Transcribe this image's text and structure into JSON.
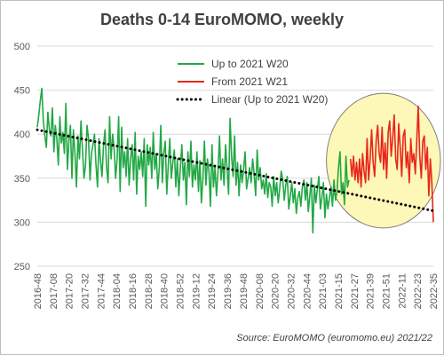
{
  "chart_data": {
    "type": "line",
    "title": "Deaths 0-14 EuroMOMO, weekly",
    "source": "Source: EuroMOMO (euromomo.eu) 2021/22",
    "xlabel": "",
    "ylabel": "",
    "ylim": [
      250,
      500
    ],
    "yticks": [
      250,
      300,
      350,
      400,
      450,
      500
    ],
    "x_tick_labels": [
      "2016-48",
      "2017-08",
      "2017-20",
      "2017-32",
      "2017-44",
      "2018-04",
      "2018-16",
      "2018-28",
      "2018-40",
      "2018-52",
      "2019-12",
      "2019-24",
      "2019-36",
      "2019-48",
      "2020-08",
      "2020-20",
      "2020-32",
      "2020-44",
      "2021-03",
      "2021-15",
      "2021-27",
      "2021-39",
      "2021-51",
      "2022-11",
      "2022-23",
      "2022-35"
    ],
    "grid": "horizontal",
    "legend_position": "top-center",
    "colors": {
      "green": "#22a845",
      "red": "#e8261c",
      "trend": "#000000",
      "highlight_fill": "#fdf7b8",
      "highlight_stroke": "#7f7f7f"
    },
    "series": [
      {
        "name": "Up to 2021 W20",
        "color": "#22a845",
        "values": [
          408,
          422,
          438,
          452,
          415,
          398,
          385,
          425,
          405,
          398,
          430,
          380,
          410,
          395,
          365,
          420,
          390,
          402,
          378,
          435,
          360,
          392,
          410,
          350,
          405,
          378,
          340,
          398,
          372,
          415,
          382,
          350,
          365,
          410,
          395,
          348,
          378,
          388,
          400,
          365,
          340,
          395,
          370,
          352,
          388,
          405,
          362,
          345,
          420,
          372,
          400,
          385,
          350,
          372,
          420,
          335,
          408,
          362,
          380,
          352,
          395,
          342,
          372,
          388,
          348,
          402,
          332,
          375,
          360,
          380,
          352,
          395,
          318,
          388,
          365,
          385,
          350,
          402,
          360,
          378,
          338,
          362,
          410,
          345,
          378,
          392,
          332,
          365,
          395,
          350,
          368,
          382,
          340,
          372,
          330,
          362,
          388,
          348,
          368,
          320,
          380,
          352,
          392,
          340,
          365,
          348,
          380,
          335,
          370,
          322,
          350,
          392,
          342,
          372,
          358,
          318,
          388,
          340,
          362,
          330,
          358,
          398,
          348,
          372,
          342,
          388,
          360,
          332,
          418,
          375,
          352,
          398,
          342,
          368,
          330,
          365,
          345,
          360,
          380,
          338,
          350,
          362,
          345,
          372,
          355,
          330,
          382,
          348,
          362,
          338,
          348,
          332,
          355,
          328,
          345,
          340,
          318,
          352,
          330,
          345,
          322,
          338,
          358,
          348,
          325,
          342,
          352,
          315,
          330,
          345,
          322,
          338,
          310,
          328,
          335,
          318,
          340,
          348,
          325,
          345,
          312,
          330,
          350,
          288,
          342,
          322,
          338,
          352,
          315,
          328,
          345,
          305,
          332,
          315,
          328,
          340,
          318,
          348,
          325,
          335,
          362,
          380,
          332,
          345,
          320,
          375,
          340,
          348
        ]
      },
      {
        "name": "From 2021 W21",
        "color": "#e8261c",
        "values": [
          372,
          352,
          375,
          348,
          368,
          345,
          372,
          340,
          378,
          358,
          345,
          395,
          348,
          372,
          405,
          368,
          352,
          392,
          410,
          378,
          368,
          408,
          360,
          390,
          350,
          402,
          415,
          375,
          395,
          422,
          372,
          360,
          412,
          385,
          352,
          398,
          405,
          362,
          380,
          345,
          395,
          368,
          378,
          355,
          392,
          432,
          375,
          350,
          392,
          398,
          360,
          385,
          330,
          372,
          345,
          300
        ]
      },
      {
        "name": "Linear (Up to 2021 W20)",
        "color": "#000000",
        "style": "dotted",
        "start": 405,
        "end": 313
      }
    ]
  }
}
